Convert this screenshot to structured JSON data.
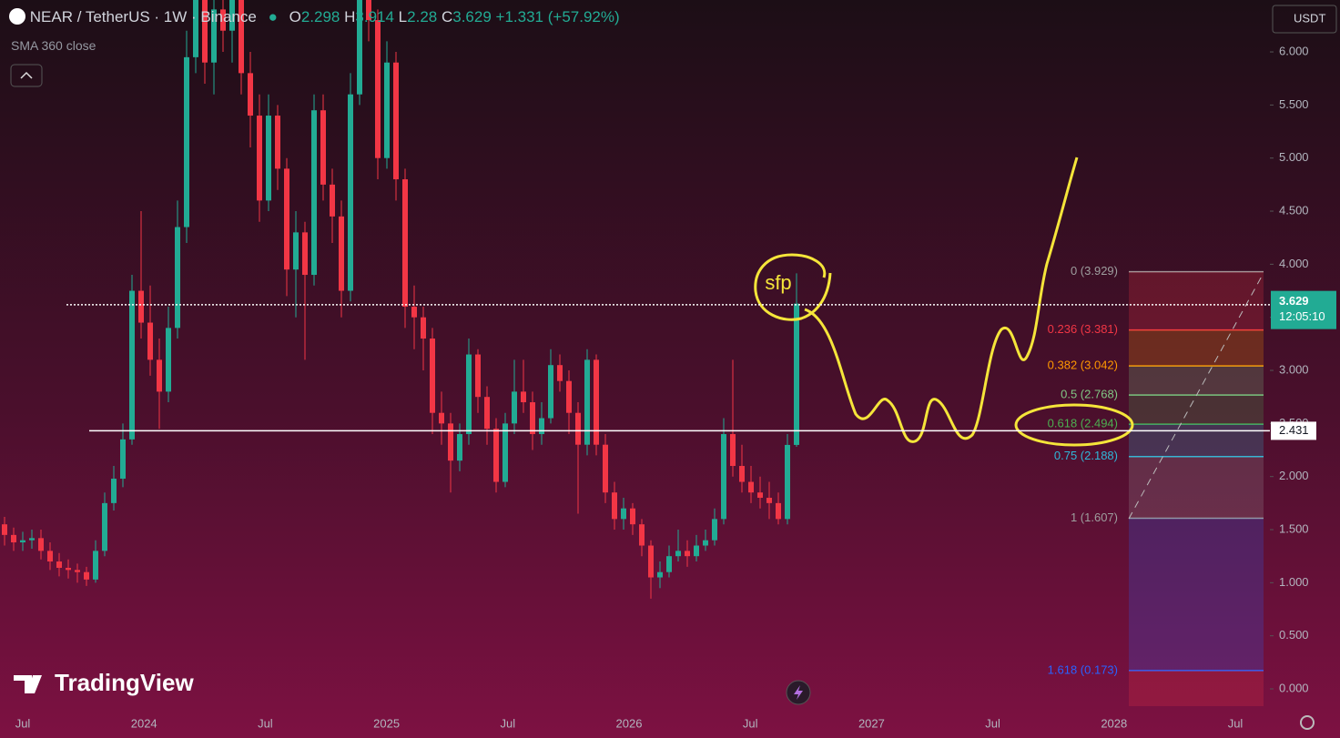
{
  "header": {
    "symbol": "NEAR / TetherUS · 1W · Binance",
    "o": "O",
    "h": "H",
    "l": "L",
    "c": "C",
    "change": "+1.331 (+57.92%)",
    "indicator": "SMA 360 close"
  },
  "ui": {
    "currency": "USDT",
    "brand": "TradingView"
  },
  "chart_data": {
    "type": "candlestick",
    "up_color": "#22ab94",
    "down_color": "#f23645",
    "ohlc": [
      [
        1.55,
        1.62,
        1.35,
        1.45
      ],
      [
        1.45,
        1.52,
        1.3,
        1.38
      ],
      [
        1.38,
        1.48,
        1.3,
        1.4
      ],
      [
        1.4,
        1.5,
        1.32,
        1.42
      ],
      [
        1.42,
        1.5,
        1.22,
        1.3
      ],
      [
        1.3,
        1.38,
        1.12,
        1.2
      ],
      [
        1.2,
        1.28,
        1.06,
        1.14
      ],
      [
        1.14,
        1.22,
        1.04,
        1.12
      ],
      [
        1.12,
        1.18,
        1.0,
        1.1
      ],
      [
        1.1,
        1.15,
        0.97,
        1.03
      ],
      [
        1.03,
        1.4,
        1.0,
        1.3
      ],
      [
        1.3,
        1.85,
        1.25,
        1.75
      ],
      [
        1.75,
        2.1,
        1.68,
        1.98
      ],
      [
        1.98,
        2.5,
        1.9,
        2.35
      ],
      [
        2.35,
        3.9,
        2.3,
        3.75
      ],
      [
        3.75,
        4.5,
        3.3,
        3.45
      ],
      [
        3.45,
        3.8,
        2.95,
        3.1
      ],
      [
        3.1,
        3.3,
        2.45,
        2.8
      ],
      [
        2.8,
        3.6,
        2.7,
        3.4
      ],
      [
        3.4,
        4.6,
        3.3,
        4.35
      ],
      [
        4.35,
        6.2,
        4.2,
        5.95
      ],
      [
        5.95,
        7.2,
        5.8,
        6.8
      ],
      [
        6.8,
        7.0,
        5.7,
        5.9
      ],
      [
        5.9,
        6.6,
        5.6,
        6.4
      ],
      [
        6.4,
        6.7,
        6.0,
        6.2
      ],
      [
        6.2,
        6.9,
        5.9,
        6.6
      ],
      [
        6.6,
        6.7,
        5.6,
        5.8
      ],
      [
        5.8,
        6.0,
        5.1,
        5.4
      ],
      [
        5.4,
        5.6,
        4.4,
        4.6
      ],
      [
        4.6,
        5.6,
        4.5,
        5.4
      ],
      [
        5.4,
        5.5,
        4.7,
        4.9
      ],
      [
        4.9,
        5.0,
        3.7,
        3.95
      ],
      [
        3.95,
        4.5,
        3.5,
        4.3
      ],
      [
        4.3,
        4.4,
        3.1,
        3.9
      ],
      [
        3.9,
        5.6,
        3.8,
        5.45
      ],
      [
        5.45,
        5.6,
        4.6,
        4.75
      ],
      [
        4.75,
        4.9,
        4.2,
        4.45
      ],
      [
        4.45,
        4.6,
        3.5,
        3.75
      ],
      [
        3.75,
        5.8,
        3.65,
        5.6
      ],
      [
        5.6,
        7.2,
        5.5,
        6.9
      ],
      [
        6.9,
        7.1,
        6.1,
        6.3
      ],
      [
        6.3,
        6.4,
        4.8,
        5.0
      ],
      [
        5.0,
        6.1,
        4.9,
        5.9
      ],
      [
        5.9,
        6.0,
        4.6,
        4.8
      ],
      [
        4.8,
        4.9,
        3.4,
        3.6
      ],
      [
        3.6,
        3.8,
        3.2,
        3.5
      ],
      [
        3.5,
        3.6,
        3.0,
        3.3
      ],
      [
        3.3,
        3.4,
        2.4,
        2.6
      ],
      [
        2.6,
        2.8,
        2.3,
        2.5
      ],
      [
        2.5,
        2.6,
        1.85,
        2.15
      ],
      [
        2.15,
        2.5,
        2.05,
        2.4
      ],
      [
        2.4,
        3.3,
        2.3,
        3.15
      ],
      [
        3.15,
        3.2,
        2.6,
        2.75
      ],
      [
        2.75,
        2.85,
        2.3,
        2.45
      ],
      [
        2.45,
        2.55,
        1.85,
        1.95
      ],
      [
        1.95,
        2.6,
        1.9,
        2.5
      ],
      [
        2.5,
        3.1,
        2.4,
        2.8
      ],
      [
        2.8,
        3.1,
        2.6,
        2.7
      ],
      [
        2.7,
        2.8,
        2.25,
        2.4
      ],
      [
        2.4,
        2.7,
        2.3,
        2.55
      ],
      [
        2.55,
        3.2,
        2.5,
        3.05
      ],
      [
        3.05,
        3.15,
        2.8,
        2.9
      ],
      [
        2.9,
        3.0,
        2.4,
        2.6
      ],
      [
        2.6,
        2.7,
        1.65,
        2.3
      ],
      [
        2.3,
        3.2,
        2.2,
        3.1
      ],
      [
        3.1,
        3.15,
        2.2,
        2.3
      ],
      [
        2.3,
        2.4,
        1.75,
        1.85
      ],
      [
        1.85,
        1.95,
        1.5,
        1.6
      ],
      [
        1.6,
        1.8,
        1.5,
        1.7
      ],
      [
        1.7,
        1.75,
        1.45,
        1.55
      ],
      [
        1.55,
        1.6,
        1.25,
        1.35
      ],
      [
        1.35,
        1.4,
        0.85,
        1.05
      ],
      [
        1.05,
        1.2,
        0.95,
        1.1
      ],
      [
        1.1,
        1.35,
        1.05,
        1.25
      ],
      [
        1.25,
        1.5,
        1.2,
        1.3
      ],
      [
        1.3,
        1.4,
        1.15,
        1.25
      ],
      [
        1.25,
        1.45,
        1.2,
        1.35
      ],
      [
        1.35,
        1.5,
        1.3,
        1.4
      ],
      [
        1.4,
        1.7,
        1.35,
        1.6
      ],
      [
        1.6,
        2.55,
        1.55,
        2.4
      ],
      [
        2.4,
        3.1,
        2.0,
        2.1
      ],
      [
        2.1,
        2.3,
        1.85,
        1.95
      ],
      [
        1.95,
        2.1,
        1.75,
        1.85
      ],
      [
        1.85,
        2.0,
        1.7,
        1.8
      ],
      [
        1.8,
        1.95,
        1.6,
        1.75
      ],
      [
        1.75,
        1.85,
        1.55,
        1.6
      ],
      [
        1.6,
        2.4,
        1.55,
        2.298
      ],
      [
        2.298,
        3.914,
        2.28,
        3.629
      ]
    ],
    "ylim": [
      -0.197,
      6.489
    ],
    "yticks": [
      {
        "value": 0,
        "label": "0.000"
      },
      {
        "value": 0.5,
        "label": "0.500"
      },
      {
        "value": 1,
        "label": "1.000"
      },
      {
        "value": 1.5,
        "label": "1.500"
      },
      {
        "value": 2,
        "label": "2.000"
      },
      {
        "value": 2.5,
        "label": "2.500"
      },
      {
        "value": 3,
        "label": "3.000"
      },
      {
        "value": 3.5,
        "label": "3.500"
      },
      {
        "value": 4,
        "label": "4.000"
      },
      {
        "value": 4.5,
        "label": "4.500"
      },
      {
        "value": 5,
        "label": "5.000"
      },
      {
        "value": 5.5,
        "label": "5.500"
      },
      {
        "value": 6,
        "label": "6.000"
      }
    ],
    "x_labels": [
      "Jul",
      "2024",
      "Jul",
      "2025",
      "Jul",
      "2026",
      "Jul",
      "2027",
      "Jul",
      "2028",
      "Jul"
    ],
    "price_lines": [
      {
        "value": 3.618,
        "style": "dotted"
      },
      {
        "value": 2.431,
        "style": "solid"
      }
    ],
    "countdown": "12:05:10",
    "fib": [
      {
        "label": "0 (3.929)",
        "value": 3.929,
        "color": "#9e9e9e"
      },
      {
        "label": "0.236 (3.381)",
        "value": 3.381,
        "color": "#f23645"
      },
      {
        "label": "0.382 (3.042)",
        "value": 3.042,
        "color": "#ff9800"
      },
      {
        "label": "0.5 (2.768)",
        "value": 2.768,
        "color": "#81c784"
      },
      {
        "label": "0.618 (2.494)",
        "value": 2.494,
        "color": "#4caf50"
      },
      {
        "label": "0.75 (2.188)",
        "value": 2.188,
        "color": "#2fb7d8"
      },
      {
        "label": "1 (1.607)",
        "value": 1.607,
        "color": "#9e9e9e"
      },
      {
        "label": "1.618 (0.173)",
        "value": 0.173,
        "color": "#2962ff"
      }
    ],
    "annotation": "sfp"
  }
}
